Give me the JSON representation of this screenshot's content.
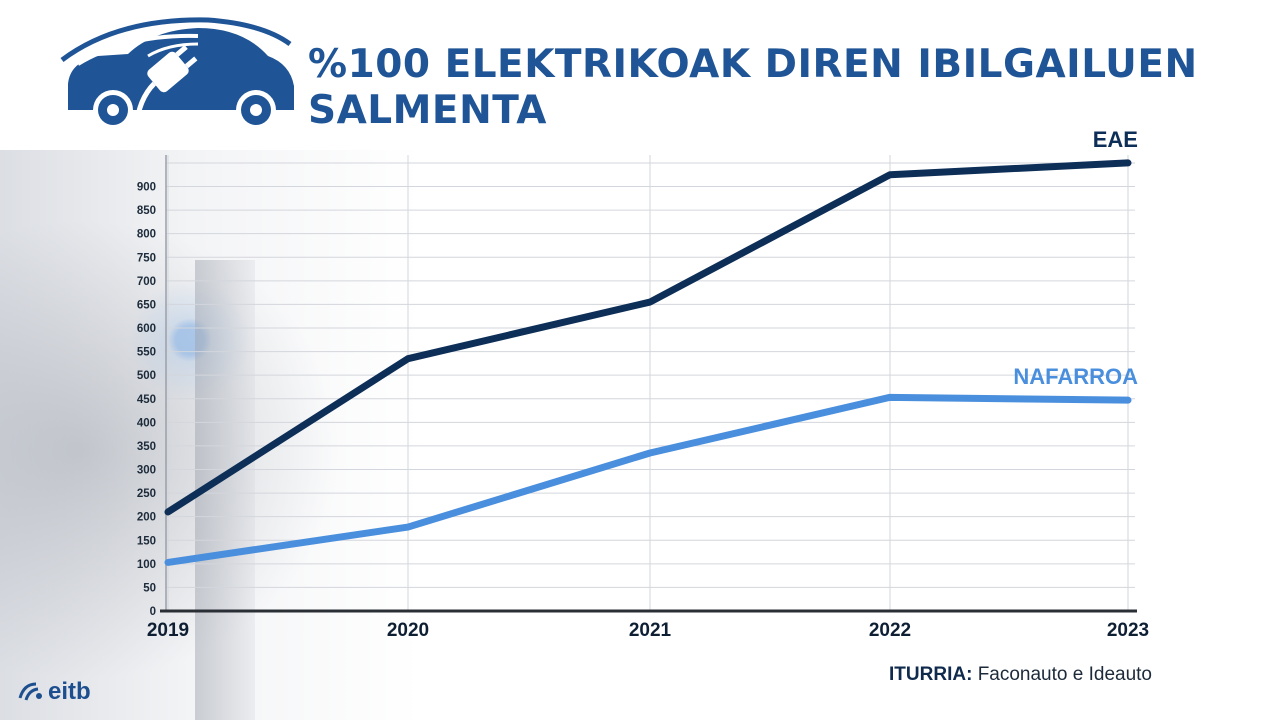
{
  "title": "%100 ELEKTRIKOAK DIREN IBILGAILUEN SALMENTA",
  "source": {
    "label": "ITURRIA:",
    "text": "Faconauto e Ideauto"
  },
  "brand": "eitb",
  "colors": {
    "title": "#1f5596",
    "eae": "#0d2e57",
    "nafarroa": "#4a8fdd",
    "grid": "#d3d6dc"
  },
  "icons": {
    "logo": "electric-car-plug-icon",
    "brand": "eitb-logo-icon"
  },
  "chart_data": {
    "type": "line",
    "categories": [
      "2019",
      "2020",
      "2021",
      "2022",
      "2023"
    ],
    "ylim": [
      0,
      950
    ],
    "yticks": [
      0,
      50,
      100,
      150,
      200,
      250,
      300,
      350,
      400,
      450,
      500,
      550,
      600,
      650,
      700,
      750,
      800,
      850,
      900
    ],
    "grid": true,
    "series": [
      {
        "name": "EAE",
        "values": [
          210,
          535,
          655,
          925,
          950
        ]
      },
      {
        "name": "NAFARROA",
        "values": [
          103,
          178,
          335,
          453,
          447
        ]
      }
    ]
  }
}
